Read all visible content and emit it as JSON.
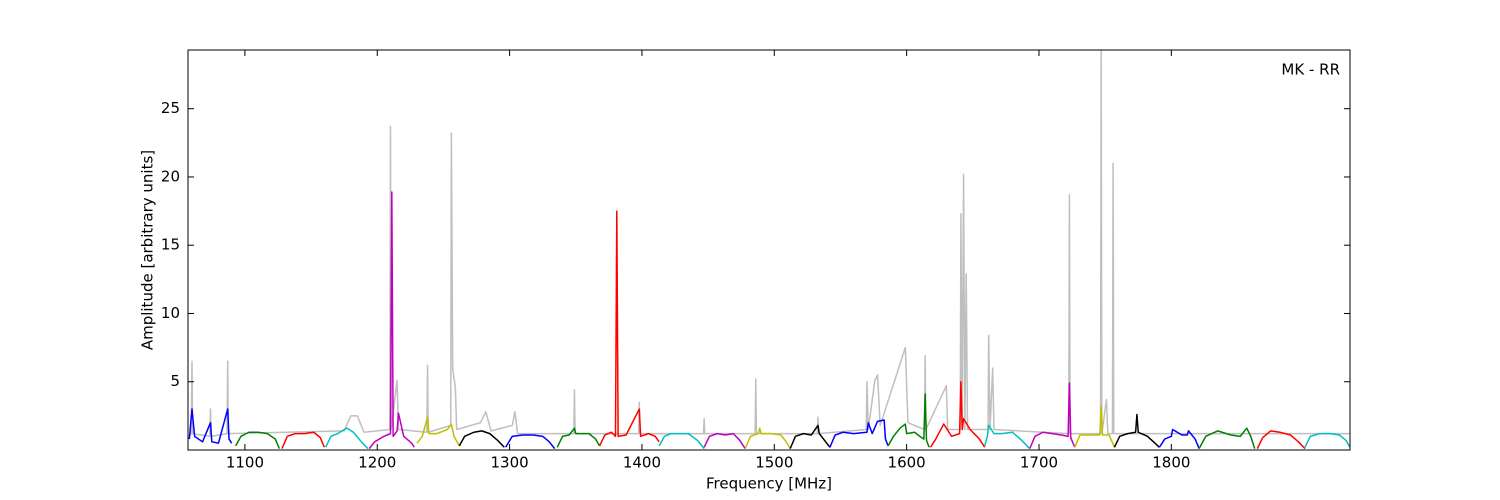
{
  "chart_data": {
    "type": "line",
    "xlabel": "Frequency [MHz]",
    "ylabel": "Amplitude [arbitrary units]",
    "annotation": "MK - RR",
    "xlim": [
      1057,
      1935
    ],
    "ylim": [
      0,
      29.3
    ],
    "xticks": [
      1100,
      1200,
      1300,
      1400,
      1500,
      1600,
      1700,
      1800
    ],
    "yticks": [
      5,
      10,
      15,
      20,
      25
    ],
    "series": [
      {
        "color": "#bfbfbf",
        "x": [
          1058,
          1059.5,
          1060,
          1060.5,
          1073.5,
          1074,
          1074.5,
          1086.5,
          1087,
          1087.5,
          1175,
          1180,
          1185,
          1190,
          1209.5,
          1210,
          1210.5,
          1215,
          1216,
          1237.5,
          1238,
          1238.5,
          1255.5,
          1256,
          1257,
          1259,
          1260,
          1278,
          1282,
          1286,
          1302,
          1304,
          1306,
          1348.5,
          1349,
          1349.5,
          1397.5,
          1398,
          1398.5,
          1446.5,
          1447,
          1447.5,
          1485.5,
          1486,
          1486.5,
          1532.5,
          1533,
          1533.5,
          1569.5,
          1570,
          1571,
          1576,
          1578,
          1580,
          1599,
          1601,
          1613.5,
          1614,
          1614.5,
          1630,
          1631,
          1640.5,
          1641,
          1642,
          1643,
          1644,
          1645,
          1646,
          1661.5,
          1662,
          1663,
          1665,
          1666,
          1722.5,
          1723,
          1723.5,
          1746.5,
          1747,
          1747.5,
          1751,
          1752,
          1755.5,
          1756,
          1756.5,
          1935
        ],
        "values": [
          1.0,
          1.2,
          6.5,
          1.2,
          1.0,
          3.0,
          1.0,
          1.2,
          6.5,
          1.2,
          1.4,
          2.5,
          2.5,
          1.3,
          1.5,
          23.7,
          1.5,
          5.1,
          1.5,
          1.3,
          6.2,
          1.3,
          1.8,
          23.2,
          5.9,
          4.6,
          1.5,
          2.0,
          2.8,
          1.4,
          1.8,
          2.8,
          1.2,
          1.2,
          4.4,
          1.2,
          1.2,
          3.5,
          1.2,
          1.2,
          2.3,
          1.2,
          1.2,
          5.2,
          1.2,
          1.2,
          2.4,
          1.2,
          1.5,
          5.0,
          1.5,
          5.1,
          5.5,
          1.8,
          7.5,
          2.0,
          1.5,
          6.9,
          1.5,
          4.7,
          1.5,
          1.5,
          17.3,
          1.5,
          20.2,
          1.5,
          12.9,
          1.5,
          1.5,
          8.4,
          1.5,
          6.0,
          1.5,
          1.2,
          18.7,
          1.2,
          1.2,
          29.3,
          1.2,
          3.7,
          1.2,
          1.2,
          21.0,
          1.2,
          1.2
        ]
      },
      {
        "color": "#0000ff",
        "x": [
          1058,
          1060,
          1062,
          1068,
          1074,
          1075,
          1080,
          1087,
          1088,
          1090
        ],
        "values": [
          0.8,
          3.0,
          1.0,
          0.6,
          2.0,
          0.6,
          0.5,
          3.0,
          0.8,
          0.5
        ]
      },
      {
        "color": "#008000",
        "x": [
          1093,
          1097,
          1103,
          1110,
          1117,
          1123,
          1126
        ],
        "values": [
          0.3,
          1.0,
          1.3,
          1.3,
          1.2,
          0.8,
          0.1
        ]
      },
      {
        "color": "#ff0000",
        "x": [
          1128,
          1132,
          1138,
          1145,
          1152,
          1157,
          1160
        ],
        "values": [
          0.1,
          1.0,
          1.2,
          1.2,
          1.3,
          0.9,
          0.2
        ]
      },
      {
        "color": "#00bfbf",
        "x": [
          1161,
          1165,
          1170,
          1177,
          1182,
          1188,
          1193
        ],
        "values": [
          0.2,
          1.0,
          1.2,
          1.6,
          1.3,
          0.6,
          0.1
        ]
      },
      {
        "color": "#bf00bf",
        "x": [
          1194,
          1198,
          1205,
          1210,
          1211,
          1212,
          1215,
          1216,
          1220,
          1226,
          1228
        ],
        "values": [
          0.1,
          0.6,
          1.0,
          1.2,
          18.9,
          1.0,
          1.4,
          2.7,
          1.0,
          0.5,
          0.2
        ]
      },
      {
        "color": "#bfbf00",
        "x": [
          1230,
          1234,
          1238,
          1239,
          1245,
          1253,
          1256,
          1258,
          1262
        ],
        "values": [
          0.5,
          1.0,
          2.4,
          1.2,
          1.2,
          1.5,
          1.9,
          1.0,
          0.3
        ]
      },
      {
        "color": "#000000",
        "x": [
          1262,
          1266,
          1273,
          1279,
          1285,
          1291,
          1296
        ],
        "values": [
          0.3,
          1.0,
          1.3,
          1.4,
          1.2,
          0.7,
          0.2
        ]
      },
      {
        "color": "#0000ff",
        "x": [
          1297,
          1302,
          1310,
          1318,
          1325,
          1330,
          1334
        ],
        "values": [
          0.2,
          1.0,
          1.1,
          1.1,
          1.0,
          0.6,
          0.1
        ]
      },
      {
        "color": "#008000",
        "x": [
          1336,
          1340,
          1345,
          1349,
          1350,
          1352,
          1360,
          1365,
          1368
        ],
        "values": [
          0.2,
          1.0,
          1.1,
          1.6,
          1.2,
          1.2,
          1.2,
          0.8,
          0.3
        ]
      },
      {
        "color": "#ff0000",
        "x": [
          1368,
          1372,
          1377,
          1380,
          1381,
          1382,
          1388,
          1398,
          1399,
          1405,
          1410,
          1413
        ],
        "values": [
          0.3,
          1.1,
          1.3,
          1.0,
          17.5,
          1.0,
          1.1,
          3.0,
          1.0,
          1.2,
          1.0,
          0.6
        ]
      },
      {
        "color": "#00bfbf",
        "x": [
          1413,
          1417,
          1422,
          1428,
          1435,
          1442,
          1447
        ],
        "values": [
          0.3,
          1.0,
          1.2,
          1.2,
          1.2,
          0.7,
          0.1
        ]
      },
      {
        "color": "#bf00bf",
        "x": [
          1447,
          1451,
          1457,
          1463,
          1469,
          1474,
          1478
        ],
        "values": [
          0.2,
          1.0,
          1.2,
          1.1,
          1.2,
          0.7,
          0.1
        ]
      },
      {
        "color": "#bfbf00",
        "x": [
          1478,
          1482,
          1488,
          1489,
          1490,
          1497,
          1505,
          1509,
          1512
        ],
        "values": [
          0.1,
          1.0,
          1.2,
          1.6,
          1.2,
          1.2,
          1.1,
          0.6,
          0.1
        ]
      },
      {
        "color": "#000000",
        "x": [
          1512,
          1516,
          1522,
          1528,
          1533,
          1534,
          1538,
          1542
        ],
        "values": [
          0.1,
          1.0,
          1.2,
          1.1,
          1.8,
          1.2,
          0.7,
          0.2
        ]
      },
      {
        "color": "#0000ff",
        "x": [
          1542,
          1546,
          1552,
          1560,
          1570,
          1571,
          1574,
          1578,
          1583,
          1584,
          1586
        ],
        "values": [
          0.2,
          1.1,
          1.3,
          1.2,
          1.3,
          2.0,
          1.2,
          2.1,
          2.2,
          0.8,
          0.3
        ]
      },
      {
        "color": "#008000",
        "x": [
          1586,
          1590,
          1595,
          1599,
          1600,
          1606,
          1610,
          1613,
          1614,
          1615,
          1617
        ],
        "values": [
          0.3,
          1.0,
          1.6,
          1.9,
          1.2,
          1.3,
          1.0,
          0.8,
          4.1,
          0.7,
          0.2
        ]
      },
      {
        "color": "#ff0000",
        "x": [
          1618,
          1622,
          1628,
          1634,
          1640,
          1641,
          1642,
          1643,
          1648,
          1655,
          1659
        ],
        "values": [
          0.2,
          0.8,
          1.9,
          1.0,
          1.2,
          5.0,
          1.5,
          2.3,
          1.5,
          0.8,
          0.2
        ]
      },
      {
        "color": "#00bfbf",
        "x": [
          1659,
          1661,
          1662,
          1666,
          1672,
          1680,
          1687,
          1693
        ],
        "values": [
          0.3,
          1.0,
          1.8,
          1.2,
          1.2,
          1.3,
          0.7,
          0.1
        ]
      },
      {
        "color": "#bf00bf",
        "x": [
          1693,
          1697,
          1703,
          1710,
          1717,
          1722,
          1723,
          1724,
          1727
        ],
        "values": [
          0.1,
          1.0,
          1.3,
          1.2,
          1.1,
          1.0,
          4.9,
          0.9,
          0.2
        ]
      },
      {
        "color": "#bfbf00",
        "x": [
          1727,
          1731,
          1737,
          1746,
          1747,
          1748,
          1753,
          1757
        ],
        "values": [
          0.2,
          1.1,
          1.1,
          1.1,
          3.2,
          1.1,
          1.1,
          0.2
        ]
      },
      {
        "color": "#000000",
        "x": [
          1757,
          1761,
          1767,
          1773,
          1774,
          1775,
          1782,
          1791
        ],
        "values": [
          0.2,
          1.0,
          1.2,
          1.3,
          2.6,
          1.3,
          1.0,
          0.2
        ]
      },
      {
        "color": "#0000ff",
        "x": [
          1791,
          1795,
          1800,
          1801,
          1808,
          1812,
          1813,
          1818,
          1821
        ],
        "values": [
          0.2,
          0.8,
          1.0,
          1.5,
          1.1,
          1.1,
          1.4,
          0.8,
          0.1
        ]
      },
      {
        "color": "#008000",
        "x": [
          1821,
          1826,
          1835,
          1845,
          1852,
          1857,
          1860,
          1863
        ],
        "values": [
          0.1,
          1.0,
          1.4,
          1.1,
          1.0,
          1.6,
          1.0,
          0.1
        ]
      },
      {
        "color": "#ff0000",
        "x": [
          1865,
          1869,
          1875,
          1882,
          1890,
          1896,
          1901
        ],
        "values": [
          0.1,
          0.9,
          1.4,
          1.3,
          1.1,
          0.6,
          0.1
        ]
      },
      {
        "color": "#00bfbf",
        "x": [
          1901,
          1905,
          1912,
          1920,
          1927,
          1932,
          1935
        ],
        "values": [
          0.2,
          1.0,
          1.2,
          1.2,
          1.1,
          0.7,
          0.2
        ]
      }
    ]
  }
}
